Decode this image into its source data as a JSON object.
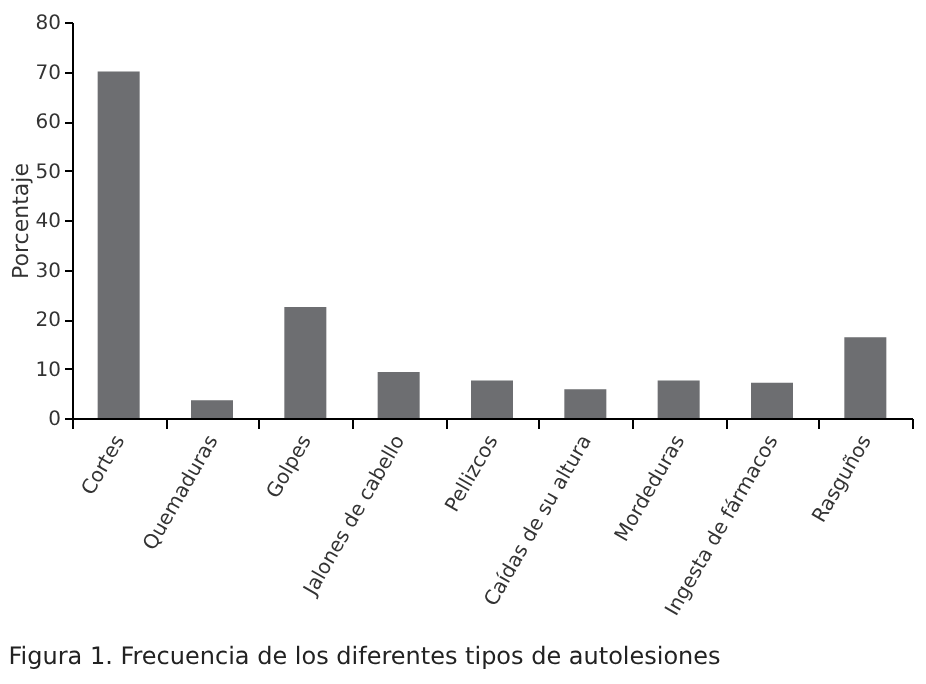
{
  "chart_data": {
    "type": "bar",
    "ylabel": "Porcentaje",
    "categories": [
      "Cortes",
      "Quemaduras",
      "Golpes",
      "Jalones de cabello",
      "Pellizcos",
      "Caídas de su altura",
      "Mordeduras",
      "Ingesta de fármacos",
      "Rasguños"
    ],
    "values": [
      70,
      3.6,
      22.4,
      9.3,
      7.6,
      5.8,
      7.6,
      7.1,
      16.3
    ],
    "color": "#6d6e71",
    "ylim": [
      0,
      80
    ],
    "yticks": [
      0,
      10,
      20,
      30,
      40,
      50,
      60,
      70,
      80
    ],
    "grid": false,
    "annotations": [
      "Figura 1. Frecuencia de los diferentes tipos de autolesiones"
    ]
  }
}
